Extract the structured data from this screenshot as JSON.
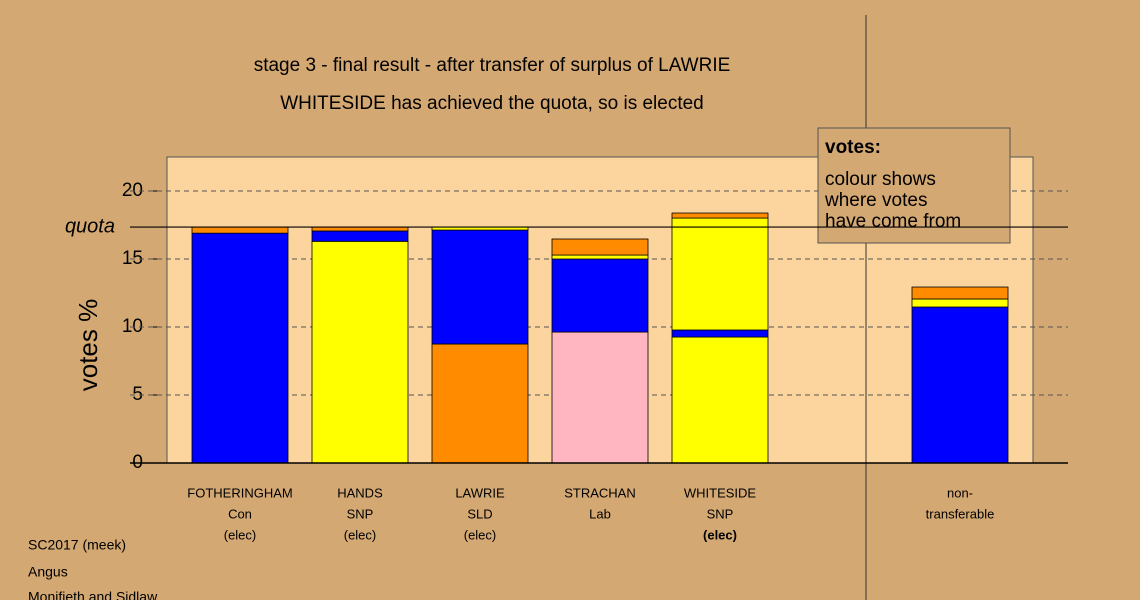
{
  "chart_data": {
    "type": "bar",
    "stacked": true,
    "title": "stage 3 - final result - after transfer of surplus of LAWRIE",
    "subtitle": "WHITESIDE has achieved the quota, so is elected",
    "y_label": "votes %",
    "ylim": [
      0,
      22.5
    ],
    "yticks": [
      0,
      5,
      10,
      15,
      20
    ],
    "grid": true,
    "quota": {
      "label": "quota",
      "value": 17.35
    },
    "bars": [
      {
        "labels": [
          "FOTHERINGHAM",
          "Con",
          "(elec)"
        ],
        "segments": [
          {
            "color": "#0000ff",
            "value": 16.9
          },
          {
            "color": "#ff8c00",
            "value": 0.45
          }
        ]
      },
      {
        "labels": [
          "HANDS",
          "SNP",
          "(elec)"
        ],
        "segments": [
          {
            "color": "#ffff00",
            "value": 16.3
          },
          {
            "color": "#0000ff",
            "value": 0.76
          },
          {
            "color": "#ff8c00",
            "value": 0.3
          }
        ]
      },
      {
        "labels": [
          "LAWRIE",
          "SLD",
          "(elec)"
        ],
        "segments": [
          {
            "color": "#ff8c00",
            "value": 8.75
          },
          {
            "color": "#0000ff",
            "value": 8.38
          },
          {
            "color": "#ffff00",
            "value": 0.22
          }
        ]
      },
      {
        "labels": [
          "STRACHAN",
          "Lab"
        ],
        "segments": [
          {
            "color": "#ffb6c1",
            "value": 9.63
          },
          {
            "color": "#0000ff",
            "value": 5.37
          },
          {
            "color": "#ffff00",
            "value": 0.29
          },
          {
            "color": "#ff8c00",
            "value": 1.18
          }
        ]
      },
      {
        "labels": [
          "WHITESIDE",
          "SNP",
          "(elec)"
        ],
        "highlight": true,
        "segments": [
          {
            "color": "#ffff00",
            "value": 9.26
          },
          {
            "color": "#0000ff",
            "value": 0.52
          },
          {
            "color": "#ffff00",
            "value": 8.23
          },
          {
            "color": "#ff8c00",
            "value": 0.37
          }
        ]
      },
      null,
      {
        "labels": [
          "non-",
          "transferable"
        ],
        "segments": [
          {
            "color": "#0000ff",
            "value": 11.47
          },
          {
            "color": "#ffff00",
            "value": 0.59
          },
          {
            "color": "#ff8c00",
            "value": 0.88
          }
        ]
      }
    ],
    "legend": {
      "heading": "votes:",
      "lines": [
        "colour shows",
        "where votes",
        "have come from"
      ]
    },
    "footer": [
      "SC2017 (meek)",
      "Angus",
      "Monifieth and Sidlaw"
    ]
  }
}
